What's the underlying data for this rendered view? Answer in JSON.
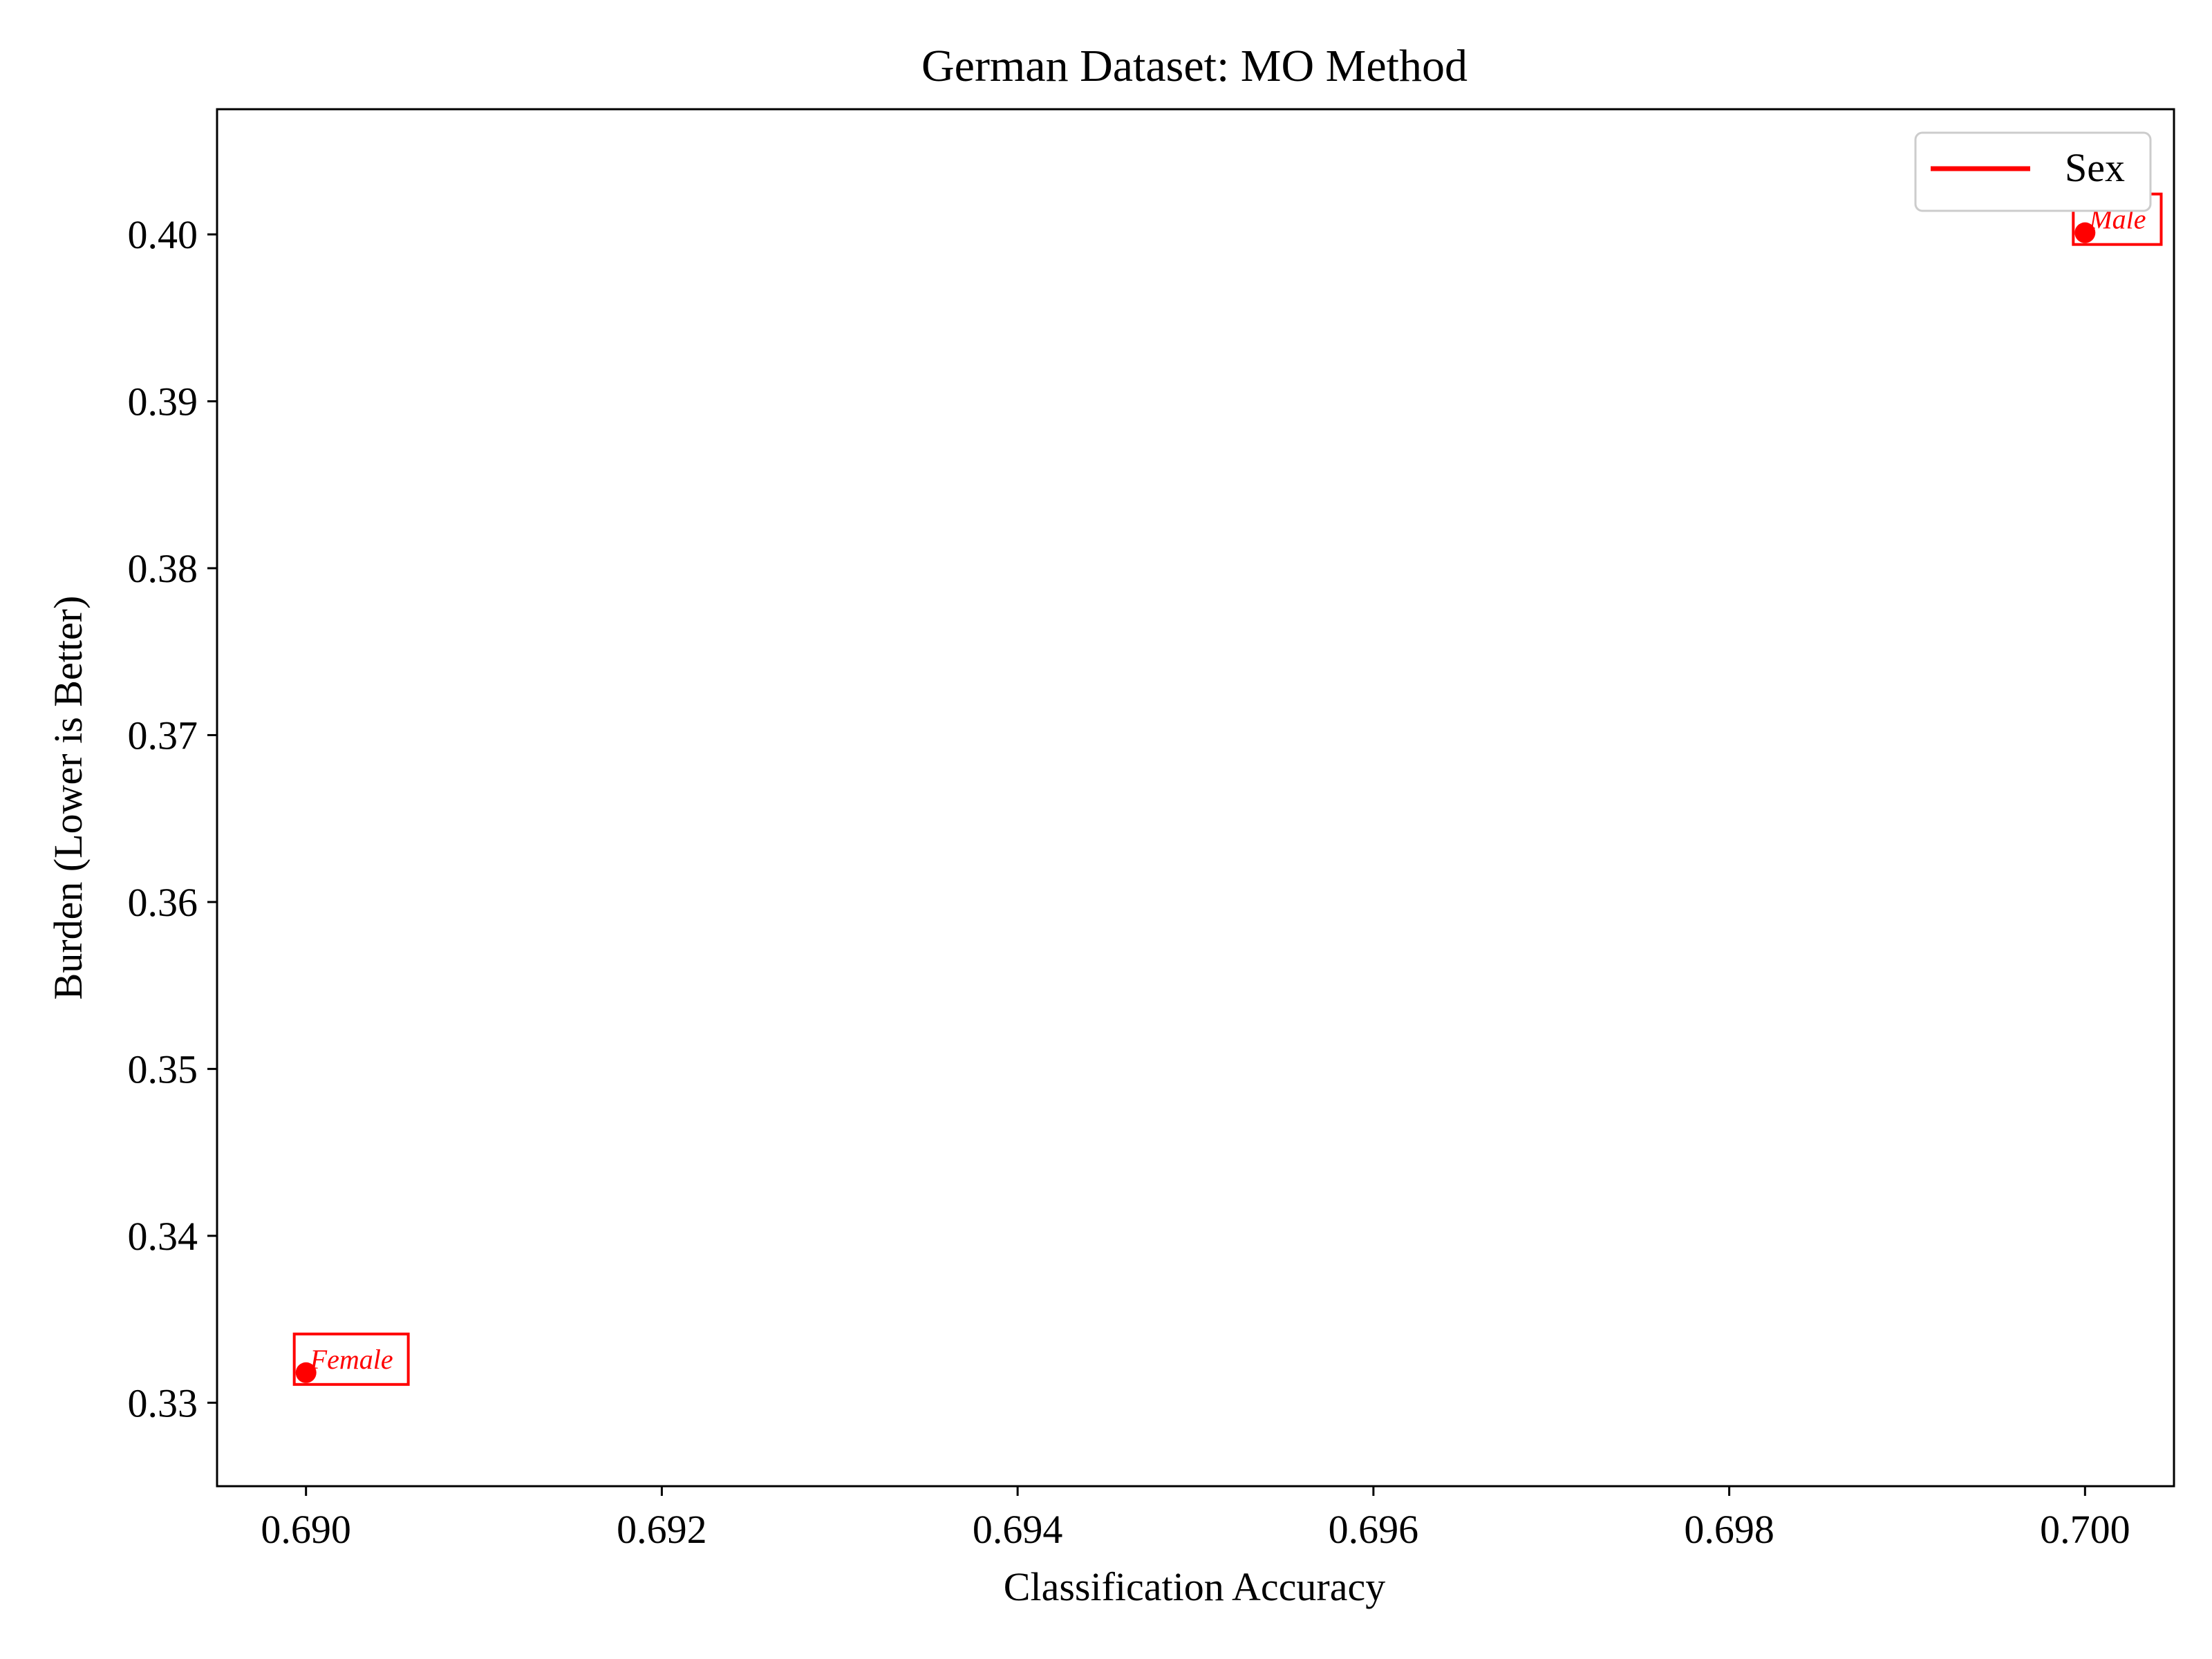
{
  "chart_data": {
    "type": "scatter",
    "title": "German Dataset: MO Method",
    "xlabel": "Classification Accuracy",
    "ylabel": "Burden (Lower is Better)",
    "xlim": [
      0.6895,
      0.7005
    ],
    "ylim": [
      0.325,
      0.4075
    ],
    "x_ticks": [
      0.69,
      0.692,
      0.694,
      0.696,
      0.698,
      0.7
    ],
    "x_tick_labels": [
      "0.690",
      "0.692",
      "0.694",
      "0.696",
      "0.698",
      "0.700"
    ],
    "y_ticks": [
      0.33,
      0.34,
      0.35,
      0.36,
      0.37,
      0.38,
      0.39,
      0.4
    ],
    "y_tick_labels": [
      "0.33",
      "0.34",
      "0.35",
      "0.36",
      "0.37",
      "0.38",
      "0.39",
      "0.40"
    ],
    "grid": false,
    "legend": {
      "placement": "top-right",
      "entries": [
        {
          "label": "Sex",
          "color": "#ff0000"
        }
      ]
    },
    "series": [
      {
        "name": "Sex",
        "color": "#ff0000",
        "points": [
          {
            "x": 0.69,
            "y": 0.3318,
            "label": "Female"
          },
          {
            "x": 0.7,
            "y": 0.4001,
            "label": "Male"
          }
        ]
      }
    ]
  }
}
